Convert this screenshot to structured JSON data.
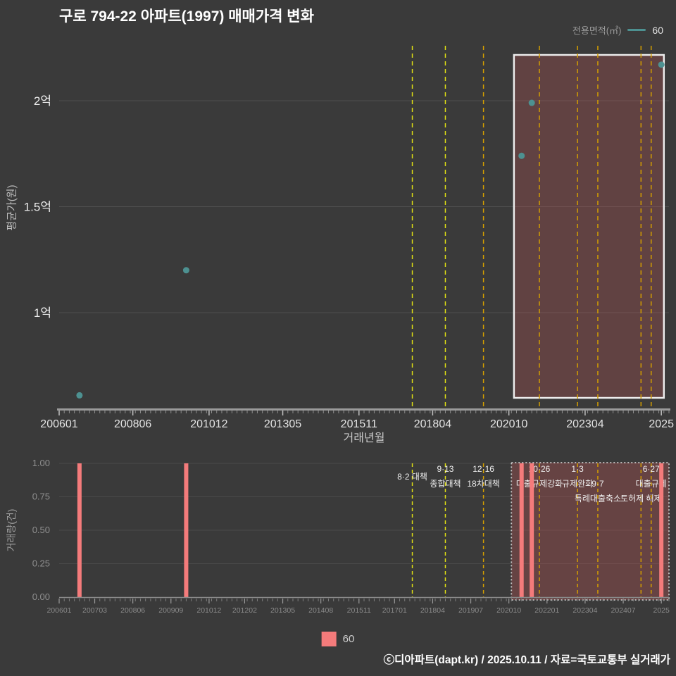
{
  "title": "구로 794-22 아파트(1997) 매매가격 변화",
  "legend_top": {
    "label": "전용면적(㎡)",
    "series": "60",
    "color": "#4d9191"
  },
  "legend_bottom": {
    "series": "60",
    "color": "#f47b7b"
  },
  "footer": "ⓒ디아파트(dapt.kr) / 2025.10.11 / 자료=국토교통부 실거래가",
  "chart_data": [
    {
      "type": "scatter",
      "title": "구로 794-22 아파트(1997) 매매가격 변화",
      "xlabel": "거래년월",
      "ylabel": "평균가(원)",
      "x_range": [
        "200601",
        "202601"
      ],
      "x_ticks": [
        {
          "label": "200601",
          "ym": "200601"
        },
        {
          "label": "200806",
          "ym": "200806"
        },
        {
          "label": "201012",
          "ym": "201012"
        },
        {
          "label": "201305",
          "ym": "201305"
        },
        {
          "label": "201511",
          "ym": "201511"
        },
        {
          "label": "201804",
          "ym": "201804"
        },
        {
          "label": "202010",
          "ym": "202010"
        },
        {
          "label": "202304",
          "ym": "202304"
        },
        {
          "label": "2025",
          "ym": "202510"
        }
      ],
      "y_ticks": [
        {
          "label": "2억",
          "value": 2.0
        },
        {
          "label": "1.5억",
          "value": 1.5
        },
        {
          "label": "1억",
          "value": 1.0
        }
      ],
      "y_unit": "억원",
      "series": [
        {
          "name": "60",
          "color": "#4d9191",
          "points": [
            [
              "200609",
              0.61
            ],
            [
              "201003",
              1.2
            ],
            [
              "202103",
              1.74
            ],
            [
              "202107",
              1.99
            ],
            [
              "202510",
              2.17
            ]
          ]
        }
      ],
      "highlight_region": {
        "from": "202012",
        "to": "202511"
      }
    },
    {
      "type": "bar",
      "ylabel": "거래량(건)",
      "ylim": [
        0,
        1
      ],
      "y_ticks": [
        "1.00",
        "0.75",
        "0.50",
        "0.25",
        "0.00"
      ],
      "x_ticks": [
        {
          "label": "200601",
          "ym": "200601"
        },
        {
          "label": "200703",
          "ym": "200703"
        },
        {
          "label": "200806",
          "ym": "200806"
        },
        {
          "label": "200909",
          "ym": "200909"
        },
        {
          "label": "201012",
          "ym": "201012"
        },
        {
          "label": "201202",
          "ym": "201202"
        },
        {
          "label": "201305",
          "ym": "201305"
        },
        {
          "label": "201408",
          "ym": "201408"
        },
        {
          "label": "201511",
          "ym": "201511"
        },
        {
          "label": "201701",
          "ym": "201701"
        },
        {
          "label": "201804",
          "ym": "201804"
        },
        {
          "label": "201907",
          "ym": "201907"
        },
        {
          "label": "202010",
          "ym": "202010"
        },
        {
          "label": "202201",
          "ym": "202201"
        },
        {
          "label": "202304",
          "ym": "202304"
        },
        {
          "label": "202407",
          "ym": "202407"
        },
        {
          "label": "2025",
          "ym": "202510"
        }
      ],
      "series": [
        {
          "name": "60",
          "color": "#f47b7b",
          "bars": [
            [
              "200609",
              1
            ],
            [
              "201003",
              1
            ],
            [
              "202103",
              1
            ],
            [
              "202107",
              1
            ],
            [
              "202510",
              1
            ]
          ]
        }
      ],
      "highlight_region": {
        "from": "202011",
        "to": "202601"
      }
    }
  ],
  "policies": [
    {
      "ym": "201708",
      "rows": [
        "8·2 대책",
        "",
        ""
      ],
      "dy": 11,
      "color": "#dede14"
    },
    {
      "ym": "201809",
      "rows": [
        "9·13",
        "종합대책",
        ""
      ],
      "color": "#dede14"
    },
    {
      "ym": "201912",
      "rows": [
        "12·16",
        "18차대책",
        ""
      ],
      "color": "#d39e00"
    },
    {
      "ym": "202110",
      "rows": [
        "10·26",
        "대출규제강화",
        ""
      ],
      "color": "#d39e00"
    },
    {
      "ym": "202301",
      "rows": [
        "1·3",
        "규제완화",
        ""
      ],
      "color": "#d39e00"
    },
    {
      "ym": "202309",
      "rows": [
        "",
        "9·7",
        "특례대출축소"
      ],
      "color": "#d39e00"
    },
    {
      "ym": "202502",
      "rows": [
        "",
        "",
        "토허제 해제"
      ],
      "color": "#d39e00"
    },
    {
      "ym": "202506",
      "rows": [
        "6·27",
        "대출규제",
        ""
      ],
      "color": "#d39e00"
    }
  ]
}
